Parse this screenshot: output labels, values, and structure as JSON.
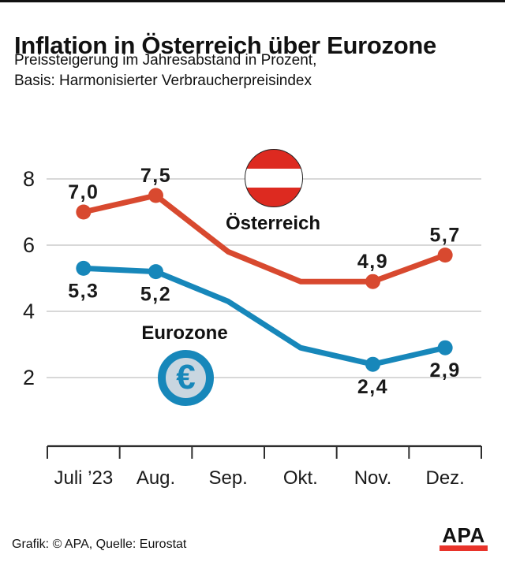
{
  "header": {
    "title": "Inflation in Österreich über Eurozone",
    "subtitle_line1": "Preissteigerung im Jahresabstand in Prozent,",
    "subtitle_line2": "Basis: Harmonisierter Verbraucherpreisindex"
  },
  "chart_data": {
    "type": "line",
    "categories": [
      "Juli ’23",
      "Aug.",
      "Sep.",
      "Okt.",
      "Nov.",
      "Dez."
    ],
    "yticks": [
      2,
      4,
      6,
      8
    ],
    "ylim": [
      0,
      9
    ],
    "grid": true,
    "unit": "Prozent",
    "series": [
      {
        "id": "austria",
        "name": "Österreich",
        "color": "#d8492f",
        "values": [
          7.0,
          7.5,
          5.8,
          4.9,
          4.9,
          5.7
        ],
        "labeled_points": [
          0,
          1,
          4,
          5
        ],
        "point_labels": [
          "7,0",
          "7,5",
          "4,9",
          "5,7"
        ],
        "label_position": "above"
      },
      {
        "id": "eurozone",
        "name": "Eurozone",
        "color": "#1787ba",
        "values": [
          5.3,
          5.2,
          4.3,
          2.9,
          2.4,
          2.9
        ],
        "labeled_points": [
          0,
          1,
          4,
          5
        ],
        "point_labels": [
          "5,3",
          "5,2",
          "2,4",
          "2,9"
        ],
        "label_position": "below"
      }
    ]
  },
  "annotations": {
    "austria_label": "Österreich",
    "eurozone_label": "Eurozone",
    "austria_icon": "austria-flag-circle",
    "eurozone_icon": "euro-coin-circle",
    "euro_symbol": "€"
  },
  "footer": {
    "credit": "Grafik: © APA, Quelle: Eurostat",
    "logo_text": "APA"
  },
  "colors": {
    "austria_line": "#d8492f",
    "eurozone_line": "#1787ba",
    "flag_red": "#dd2a20",
    "coin_ring": "#1787ba",
    "coin_fill": "#c9d6e0",
    "grid": "#cccccc",
    "axis": "#2e2e2e",
    "text": "#1a1a1a",
    "logo_red": "#e8332a"
  }
}
